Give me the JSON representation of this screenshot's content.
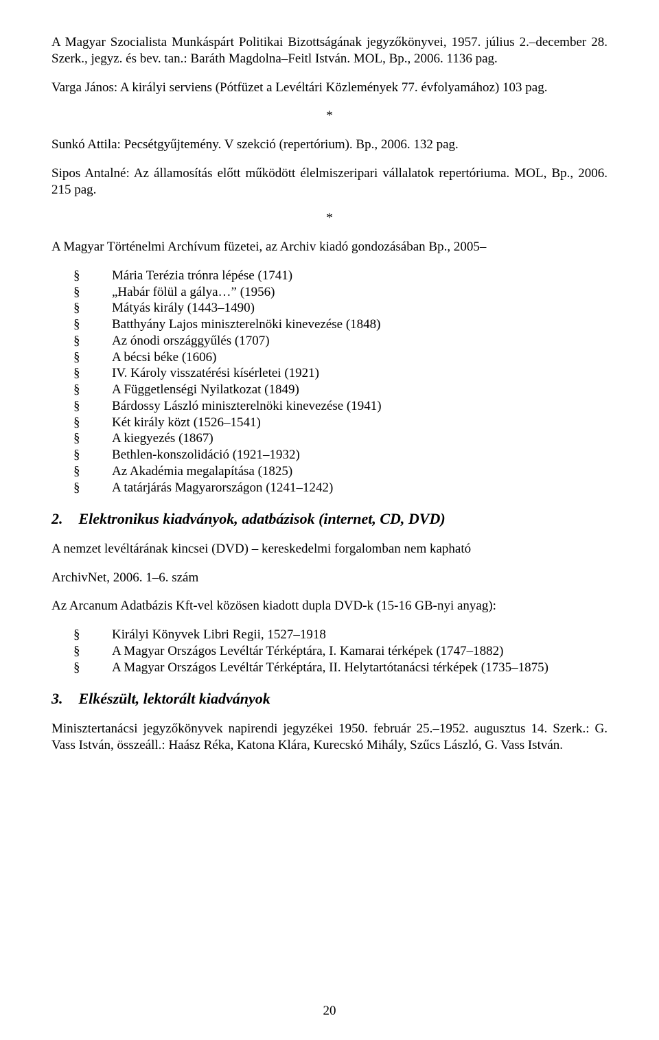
{
  "paragraphs": {
    "p1": "A Magyar Szocialista Munkáspárt Politikai Bizottságának jegyzőkönyvei, 1957. július 2.–december 28. Szerk., jegyz. és bev. tan.: Baráth Magdolna–Feitl István. MOL, Bp., 2006. 1136 pag.",
    "p2": "Varga János: A királyi serviens (Pótfüzet a Levéltári Közlemények 77. évfolyamához) 103 pag.",
    "p3": "Sunkó Attila: Pecsétgyűjtemény. V szekció (repertórium). Bp., 2006. 132 pag.",
    "p4": "Sipos Antalné: Az államosítás előtt működött élelmiszeripari vállalatok repertóriuma. MOL, Bp., 2006. 215 pag.",
    "p5": "A Magyar Történelmi Archívum füzetei, az Archiv kiadó gondozásában Bp., 2005–",
    "p6": "A nemzet levéltárának kincsei (DVD) – kereskedelmi forgalomban nem kapható",
    "p7": "ArchivNet, 2006. 1–6. szám",
    "p8": "Az Arcanum Adatbázis Kft-vel közösen kiadott dupla DVD-k (15-16 GB-nyi anyag):",
    "p9": "Minisztertanácsi jegyzőkönyvek napirendi jegyzékei 1950. február 25.–1952. augusztus 14. Szerk.: G. Vass István, összeáll.: Haász Réka, Katona Klára, Kurecskó Mihály, Szűcs László, G. Vass István."
  },
  "asterisk": "*",
  "bullet_mark": "§",
  "lists": {
    "history_list": [
      "Mária Terézia trónra lépése (1741)",
      "„Habár fölül a gálya…” (1956)",
      "Mátyás király (1443–1490)",
      "Batthyány Lajos miniszterelnöki kinevezése (1848)",
      "Az ónodi országgyűlés (1707)",
      "A bécsi béke (1606)",
      "IV. Károly visszatérési kísérletei (1921)",
      "A Függetlenségi Nyilatkozat (1849)",
      "Bárdossy László miniszterelnöki kinevezése (1941)",
      "Két király közt (1526–1541)",
      "A kiegyezés (1867)",
      "Bethlen-konszolidáció (1921–1932)",
      "Az Akadémia megalapítása (1825)",
      "A tatárjárás Magyarországon (1241–1242)"
    ],
    "dvd_list": [
      "Királyi Könyvek  Libri Regii, 1527–1918",
      "A Magyar Országos Levéltár Térképtára, I. Kamarai térképek (1747–1882)",
      "A Magyar Országos Levéltár Térképtára, II. Helytartótanácsi térképek (1735–1875)"
    ]
  },
  "sections": {
    "s2_number": "2.",
    "s2_title": "Elektronikus kiadványok, adatbázisok (internet, CD, DVD)",
    "s3_number": "3.",
    "s3_title": "Elkészült, lektorált kiadványok"
  },
  "page_number": "20"
}
